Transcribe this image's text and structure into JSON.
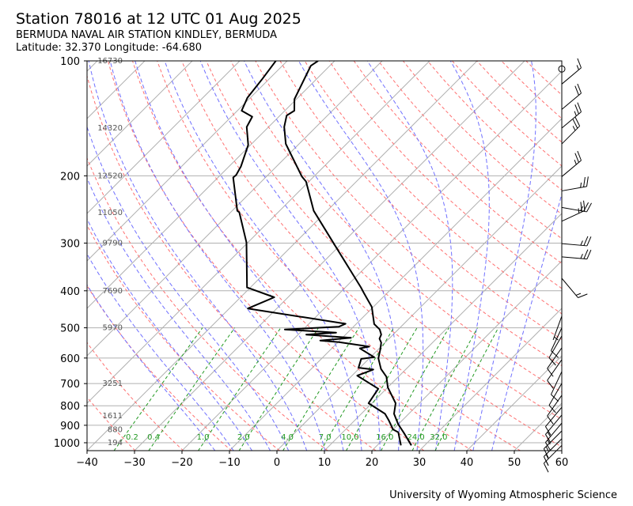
{
  "header": {
    "title": "Station 78016 at 12 UTC 01 Aug 2025",
    "station_name": "BERMUDA NAVAL AIR STATION KINDLEY, BERMUDA",
    "location": "Latitude: 32.370 Longitude: -64.680"
  },
  "footer": {
    "credit": "University of Wyoming Atmospheric Science"
  },
  "colors": {
    "temperature": "#000000",
    "dewpoint": "#000000",
    "isotherm": "#b0b0b0",
    "dry_adiabat": "#ff7070",
    "moist_adiabat": "#7070ff",
    "mixing_ratio": "#229922",
    "height_label": "#555555"
  },
  "chart_data": {
    "type": "line",
    "subtype": "skew-t log-p",
    "xlabel": "",
    "ylabel": "",
    "xlim": [
      -40,
      60
    ],
    "ylim": [
      1050,
      100
    ],
    "x_ticks": [
      -40,
      -30,
      -20,
      -10,
      0,
      10,
      20,
      30,
      40,
      50,
      60
    ],
    "x_tick_labels": [
      "−40",
      "−30",
      "−20",
      "−10",
      "0",
      "10",
      "20",
      "30",
      "40",
      "50",
      "60"
    ],
    "y_ticks": [
      100,
      200,
      300,
      400,
      500,
      600,
      700,
      800,
      900,
      1000
    ],
    "y_tick_labels": [
      "100",
      "200",
      "300",
      "400",
      "500",
      "600",
      "700",
      "800",
      "900",
      "1000"
    ],
    "grid": true,
    "height_labels": [
      {
        "p": 100,
        "text": "16730"
      },
      {
        "p": 150,
        "text": "14320"
      },
      {
        "p": 200,
        "text": "12520"
      },
      {
        "p": 250,
        "text": "11050"
      },
      {
        "p": 300,
        "text": "9790"
      },
      {
        "p": 400,
        "text": "7690"
      },
      {
        "p": 500,
        "text": "5970"
      },
      {
        "p": 700,
        "text": "3251"
      },
      {
        "p": 850,
        "text": "1611"
      },
      {
        "p": 925,
        "text": "880"
      },
      {
        "p": 1000,
        "text": "194"
      }
    ],
    "mixing_ratios": [
      {
        "w": 0.2,
        "text": "0.2"
      },
      {
        "w": 0.4,
        "text": "0.4"
      },
      {
        "w": 1.0,
        "text": "1.0"
      },
      {
        "w": 2.0,
        "text": "2.0"
      },
      {
        "w": 4.0,
        "text": "4.0"
      },
      {
        "w": 7.0,
        "text": "7.0"
      },
      {
        "w": 10.0,
        "text": "10.0"
      },
      {
        "w": 16.0,
        "text": "16.0"
      },
      {
        "w": 24.0,
        "text": "24.0"
      },
      {
        "w": 32.0,
        "text": "32.0"
      }
    ],
    "series": [
      {
        "name": "temperature",
        "p": [
          100,
          103,
          126,
          135,
          139,
          149,
          165,
          201,
          207,
          247,
          304,
          392,
          404,
          441,
          489,
          505,
          521,
          534,
          547,
          573,
          601,
          641,
          672,
          716,
          788,
          840,
          895,
          939,
          1016
        ],
        "t": [
          -73.5,
          -74.0,
          -70.4,
          -68.0,
          -68.6,
          -66.7,
          -62.8,
          -52.5,
          -50.6,
          -42.8,
          -31.1,
          -16.7,
          -15.1,
          -10.3,
          -6.2,
          -3.9,
          -2.5,
          -2.0,
          -0.8,
          0.6,
          1.9,
          4.7,
          7.5,
          10.0,
          15.0,
          16.9,
          20.0,
          22.8,
          27.2
        ]
      },
      {
        "name": "dewpoint",
        "p": [
          100,
          112,
          125,
          135,
          140,
          149,
          166,
          189,
          199,
          202,
          247,
          249,
          299,
          392,
          416,
          445,
          488,
          497,
          505,
          515,
          521,
          531,
          540,
          545,
          560,
          566,
          597,
          603,
          636,
          643,
          667,
          722,
          788,
          840,
          874,
          923,
          939,
          1016
        ],
        "t": [
          -82.4,
          -81.4,
          -80.6,
          -79.1,
          -75.6,
          -74.6,
          -70.5,
          -67.5,
          -66.7,
          -66.8,
          -58.9,
          -58.2,
          -50.3,
          -40.7,
          -32.9,
          -36.1,
          -12.3,
          -13.1,
          -23.9,
          -12.4,
          -18.3,
          -8.2,
          -14.1,
          -9.8,
          -2.5,
          -4.1,
          0.8,
          -1.6,
          -0.3,
          3.2,
          1.1,
          8.3,
          9.3,
          15.0,
          17.2,
          20.0,
          21.7,
          25.0
        ]
      }
    ],
    "wind_barbs": [
      {
        "p": 105,
        "dir": 0,
        "spd_kt": 0
      },
      {
        "p": 115,
        "dir": 50,
        "spd_kt": 15
      },
      {
        "p": 134,
        "dir": 50,
        "spd_kt": 20
      },
      {
        "p": 150,
        "dir": 50,
        "spd_kt": 25
      },
      {
        "p": 165,
        "dir": 45,
        "spd_kt": 25
      },
      {
        "p": 201,
        "dir": 50,
        "spd_kt": 25
      },
      {
        "p": 219,
        "dir": 80,
        "spd_kt": 25
      },
      {
        "p": 242,
        "dir": 100,
        "spd_kt": 25
      },
      {
        "p": 263,
        "dir": 65,
        "spd_kt": 25
      },
      {
        "p": 301,
        "dir": 95,
        "spd_kt": 25
      },
      {
        "p": 326,
        "dir": 95,
        "spd_kt": 25
      },
      {
        "p": 371,
        "dir": 140,
        "spd_kt": 15
      },
      {
        "p": 466,
        "dir": 200,
        "spd_kt": 5
      },
      {
        "p": 500,
        "dir": 205,
        "spd_kt": 10
      },
      {
        "p": 525,
        "dir": 210,
        "spd_kt": 10
      },
      {
        "p": 564,
        "dir": 215,
        "spd_kt": 10
      },
      {
        "p": 606,
        "dir": 215,
        "spd_kt": 10
      },
      {
        "p": 651,
        "dir": 205,
        "spd_kt": 10
      },
      {
        "p": 699,
        "dir": 210,
        "spd_kt": 10
      },
      {
        "p": 751,
        "dir": 215,
        "spd_kt": 10
      },
      {
        "p": 807,
        "dir": 220,
        "spd_kt": 10
      },
      {
        "p": 846,
        "dir": 220,
        "spd_kt": 15
      },
      {
        "p": 888,
        "dir": 220,
        "spd_kt": 15
      },
      {
        "p": 931,
        "dir": 225,
        "spd_kt": 15
      },
      {
        "p": 976,
        "dir": 225,
        "spd_kt": 15
      },
      {
        "p": 1016,
        "dir": 225,
        "spd_kt": 15
      }
    ]
  }
}
